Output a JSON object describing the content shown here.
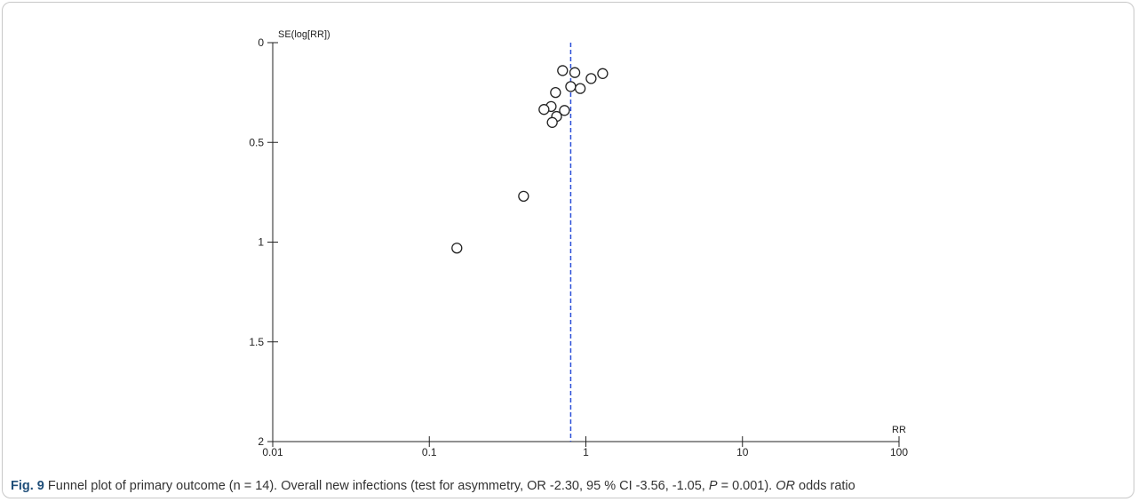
{
  "chart_data": {
    "type": "scatter",
    "x_scale": "log",
    "y_inverted": true,
    "xlabel": "RR",
    "ylabel": "SE(log[RR])",
    "xlim": [
      0.01,
      100
    ],
    "ylim": [
      0,
      2
    ],
    "x_ticks": [
      "0.01",
      "0.1",
      "1",
      "10",
      "100"
    ],
    "y_ticks": [
      "0",
      "0.5",
      "1",
      "1.5",
      "2"
    ],
    "x_tick_values": [
      0.01,
      0.1,
      1,
      10,
      100
    ],
    "y_tick_values": [
      0,
      0.5,
      1,
      1.5,
      2
    ],
    "reference_line": {
      "x": 0.8,
      "style": "dashed",
      "color": "#2b4fd8"
    },
    "grid": false,
    "marker": "open-circle",
    "points": [
      {
        "x": 0.71,
        "y": 0.14
      },
      {
        "x": 0.85,
        "y": 0.15
      },
      {
        "x": 1.28,
        "y": 0.155
      },
      {
        "x": 1.08,
        "y": 0.18
      },
      {
        "x": 0.8,
        "y": 0.22
      },
      {
        "x": 0.92,
        "y": 0.23
      },
      {
        "x": 0.64,
        "y": 0.25
      },
      {
        "x": 0.6,
        "y": 0.32
      },
      {
        "x": 0.54,
        "y": 0.335
      },
      {
        "x": 0.73,
        "y": 0.34
      },
      {
        "x": 0.65,
        "y": 0.37
      },
      {
        "x": 0.61,
        "y": 0.4
      },
      {
        "x": 0.4,
        "y": 0.77
      },
      {
        "x": 0.15,
        "y": 1.03
      }
    ]
  },
  "caption": {
    "fig_label": "Fig. 9",
    "text_1": " Funnel plot of primary outcome (n = 14). Overall new infections (test for asymmetry, OR -2.30, 95 % CI -3.56, -1.05, ",
    "p_symbol": "P",
    "text_2": " = 0.001). ",
    "or_abbr": "OR",
    "text_3": " odds ratio"
  }
}
